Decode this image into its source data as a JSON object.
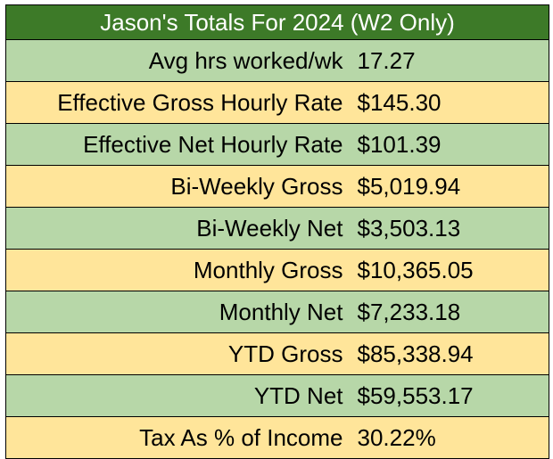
{
  "title": "Jason's Totals For 2024 (W2 Only)",
  "colors": {
    "header": "#3d7a28",
    "row_green": "#b7d7a8",
    "row_yellow": "#ffe59a"
  },
  "rows": [
    {
      "label": "Avg hrs worked/wk",
      "value": "17.27"
    },
    {
      "label": "Effective Gross Hourly Rate",
      "value": "$145.30"
    },
    {
      "label": "Effective Net Hourly Rate",
      "value": "$101.39"
    },
    {
      "label": "Bi-Weekly Gross",
      "value": "$5,019.94"
    },
    {
      "label": "Bi-Weekly Net",
      "value": "$3,503.13"
    },
    {
      "label": "Monthly Gross",
      "value": "$10,365.05"
    },
    {
      "label": "Monthly Net",
      "value": "$7,233.18"
    },
    {
      "label": "YTD Gross",
      "value": "$85,338.94"
    },
    {
      "label": "YTD Net",
      "value": "$59,553.17"
    },
    {
      "label": "Tax As % of Income",
      "value": "30.22%"
    }
  ]
}
